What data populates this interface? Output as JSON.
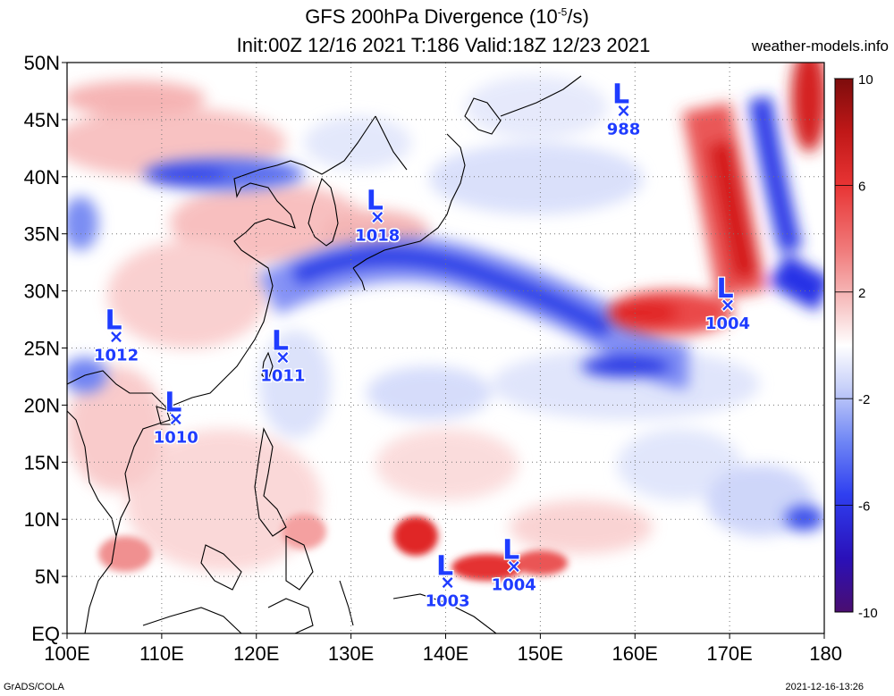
{
  "title": {
    "line1_prefix": "GFS 200hPa Divergence (10",
    "line1_exp": "-5",
    "line1_suffix": "/s)",
    "line2": "Init:00Z 12/16 2021 T:186 Valid:18Z 12/23 2021"
  },
  "site": "weather-models.info",
  "footer": {
    "left": "GrADS/COLA",
    "right": "2021-12-16-13:26"
  },
  "lat_labels": [
    "50N",
    "45N",
    "40N",
    "35N",
    "30N",
    "25N",
    "20N",
    "15N",
    "10N",
    "5N",
    "EQ"
  ],
  "lat_values": [
    50,
    45,
    40,
    35,
    30,
    25,
    20,
    15,
    10,
    5,
    0
  ],
  "lon_labels": [
    "100E",
    "110E",
    "120E",
    "130E",
    "140E",
    "150E",
    "160E",
    "170E",
    "180"
  ],
  "lon_values": [
    100,
    110,
    120,
    130,
    140,
    150,
    160,
    170,
    180
  ],
  "extent": {
    "lon": [
      100,
      180
    ],
    "lat": [
      0,
      50
    ]
  },
  "colorbar": {
    "labels": [
      "10",
      "6",
      "2",
      "-2",
      "-6",
      "-10"
    ],
    "values": [
      10,
      6,
      2,
      -2,
      -6,
      -10
    ],
    "colors": [
      "#4a0e70",
      "#2a10b8",
      "#2f3ff0",
      "#6f86f5",
      "#b4c0f8",
      "#e7ebfc",
      "#ffffff",
      "#fbe3e3",
      "#f5b3b3",
      "#f07a7a",
      "#e83434",
      "#c01818",
      "#8c0c0c"
    ]
  },
  "lows": [
    {
      "label": "L",
      "pressure": "988",
      "lon": 158.8,
      "lat": 45.8
    },
    {
      "label": "L",
      "pressure": "1018",
      "lon": 132.8,
      "lat": 36.5
    },
    {
      "label": "L",
      "pressure": "1004",
      "lon": 169.8,
      "lat": 28.8
    },
    {
      "label": "L",
      "pressure": "1012",
      "lon": 105.2,
      "lat": 26.0
    },
    {
      "label": "L",
      "pressure": "1011",
      "lon": 122.8,
      "lat": 24.2
    },
    {
      "label": "L",
      "pressure": "1010",
      "lon": 111.5,
      "lat": 18.8
    },
    {
      "label": "L",
      "pressure": "1003",
      "lon": 140.2,
      "lat": 4.5
    },
    {
      "label": "L",
      "pressure": "1004",
      "lon": 147.2,
      "lat": 5.9
    }
  ],
  "divergence_features": [
    {
      "sign": "positive",
      "lon": 172.5,
      "lat": 36.0,
      "strength": 9
    },
    {
      "sign": "positive",
      "lon": 166.0,
      "lat": 28.5,
      "strength": 7
    },
    {
      "sign": "positive",
      "lon": 178.0,
      "lat": 47.0,
      "strength": 8
    },
    {
      "sign": "negative",
      "lon": 174.5,
      "lat": 35.0,
      "strength": -8
    },
    {
      "sign": "negative",
      "lon": 178.0,
      "lat": 29.5,
      "strength": -7
    },
    {
      "sign": "negative",
      "lon": 137.0,
      "lat": 31.5,
      "strength": -7
    },
    {
      "sign": "negative",
      "lon": 146.0,
      "lat": 29.0,
      "strength": -6
    },
    {
      "sign": "negative",
      "lon": 159.0,
      "lat": 23.5,
      "strength": -6
    },
    {
      "sign": "negative",
      "lon": 115.0,
      "lat": 40.0,
      "strength": -5
    },
    {
      "sign": "positive",
      "lon": 137.5,
      "lat": 8.5,
      "strength": 6
    },
    {
      "sign": "positive",
      "lon": 144.5,
      "lat": 6.0,
      "strength": 6
    },
    {
      "sign": "positive",
      "lon": 110.0,
      "lat": 37.5,
      "strength": 4
    },
    {
      "sign": "positive",
      "lon": 126.5,
      "lat": 33.0,
      "strength": 3
    },
    {
      "sign": "positive",
      "lon": 138.0,
      "lat": 36.5,
      "strength": 3
    },
    {
      "sign": "negative",
      "lon": 127.0,
      "lat": 27.0,
      "strength": -4
    },
    {
      "sign": "negative",
      "lon": 103.0,
      "lat": 34.0,
      "strength": -4
    },
    {
      "sign": "negative",
      "lon": 178.0,
      "lat": 10.0,
      "strength": -4
    }
  ]
}
